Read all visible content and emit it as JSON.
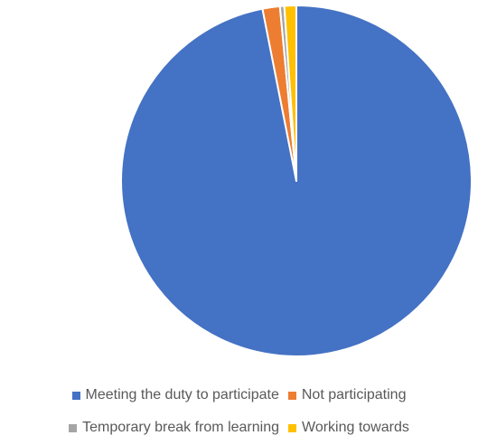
{
  "chart_data": {
    "type": "pie",
    "title": "",
    "start_angle_deg": 0,
    "direction": "clockwise",
    "slices": [
      {
        "label": "Meeting the duty to participate",
        "value": 96.9,
        "color": "#4472C4"
      },
      {
        "label": "Not participating",
        "value": 1.6,
        "color": "#ED7D31"
      },
      {
        "label": "Temporary break from learning",
        "value": 0.4,
        "color": "#A5A5A5"
      },
      {
        "label": "Working towards",
        "value": 1.1,
        "color": "#FFC000"
      }
    ],
    "legend_position": "bottom"
  }
}
